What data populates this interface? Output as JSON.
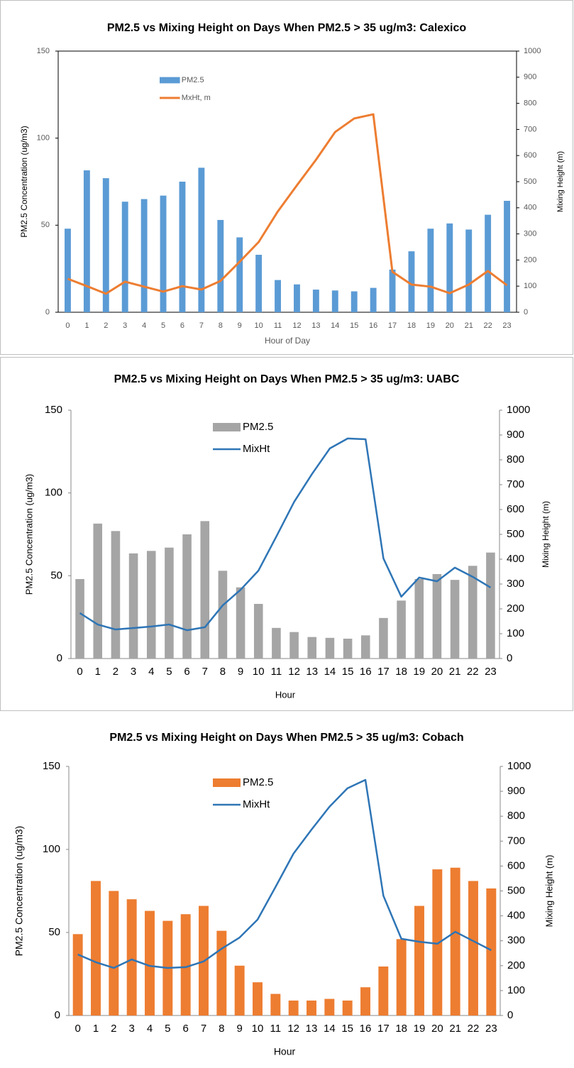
{
  "chart_data": [
    {
      "type": "combo",
      "title": "PM2.5 vs Mixing Height on Days When PM2.5 > 35 ug/m3: Calexico",
      "xlabel": "Hour of Day",
      "ylabel": "PM2.5 Concentration (ug/m3)",
      "y2label": "Mixing Height (m)",
      "categories": [
        "0",
        "1",
        "2",
        "3",
        "4",
        "5",
        "6",
        "7",
        "8",
        "9",
        "10",
        "11",
        "12",
        "13",
        "14",
        "15",
        "16",
        "17",
        "18",
        "19",
        "20",
        "21",
        "22",
        "23"
      ],
      "ylim": [
        0,
        150
      ],
      "yticks": [
        0,
        50,
        100,
        150
      ],
      "y2lim": [
        0,
        1000
      ],
      "y2ticks": [
        0,
        100,
        200,
        300,
        400,
        500,
        600,
        700,
        800,
        900,
        1000
      ],
      "series": [
        {
          "name": "PM2.5",
          "kind": "bar",
          "color": "#5b9bd5",
          "values": [
            48,
            81.5,
            77,
            63.5,
            65,
            67,
            75,
            83,
            53,
            43,
            33,
            18.5,
            16,
            13,
            12.5,
            12,
            14,
            24.5,
            35,
            48,
            51,
            47.5,
            56,
            64
          ]
        },
        {
          "name": "MxHt, m",
          "kind": "line",
          "axis": "y2",
          "color": "#ed7d31",
          "values": [
            128,
            100,
            71,
            117,
            98,
            79,
            100,
            87,
            120,
            193,
            269,
            386,
            486,
            584,
            690,
            742,
            758,
            155,
            106,
            98,
            73,
            106,
            158,
            103
          ]
        }
      ]
    },
    {
      "type": "combo",
      "title": "PM2.5 vs Mixing Height on Days When PM2.5 > 35 ug/m3: UABC",
      "xlabel": "Hour",
      "ylabel": "PM2.5 Concentration (ug/m3)",
      "y2label": "Mixing Height (m)",
      "categories": [
        "0",
        "1",
        "2",
        "3",
        "4",
        "5",
        "6",
        "7",
        "8",
        "9",
        "10",
        "11",
        "12",
        "13",
        "14",
        "15",
        "16",
        "17",
        "18",
        "19",
        "20",
        "21",
        "22",
        "23"
      ],
      "ylim": [
        0,
        150
      ],
      "yticks": [
        0,
        50,
        100,
        150
      ],
      "y2lim": [
        0,
        1000
      ],
      "y2ticks": [
        0,
        100,
        200,
        300,
        400,
        500,
        600,
        700,
        800,
        900,
        1000
      ],
      "series": [
        {
          "name": "PM2.5",
          "kind": "bar",
          "color": "#a5a5a5",
          "values": [
            48,
            81.5,
            77,
            63.5,
            65,
            67,
            75,
            83,
            53,
            43,
            33,
            18.5,
            16,
            13,
            12.5,
            12,
            14,
            24.5,
            35,
            48,
            51,
            47.5,
            56,
            64
          ]
        },
        {
          "name": "MixHt",
          "kind": "line",
          "axis": "y2",
          "color": "#2e75b6",
          "values": [
            183,
            137,
            117,
            123,
            129,
            137,
            114,
            126,
            214,
            277,
            354,
            491,
            631,
            743,
            846,
            886,
            883,
            403,
            249,
            326,
            311,
            366,
            329,
            286
          ]
        }
      ]
    },
    {
      "type": "combo",
      "title": "PM2.5 vs Mixing Height on Days When PM2.5 > 35 ug/m3: Cobach",
      "xlabel": "Hour",
      "ylabel": "PM2.5 Concentration (ug/m3)",
      "y2label": "Mixing Height (m)",
      "categories": [
        "0",
        "1",
        "2",
        "3",
        "4",
        "5",
        "6",
        "7",
        "8",
        "9",
        "10",
        "11",
        "12",
        "13",
        "14",
        "15",
        "16",
        "17",
        "18",
        "19",
        "20",
        "21",
        "22",
        "23"
      ],
      "ylim": [
        0,
        150
      ],
      "yticks": [
        0,
        50,
        100,
        150
      ],
      "y2lim": [
        0,
        1000
      ],
      "y2ticks": [
        0,
        100,
        200,
        300,
        400,
        500,
        600,
        700,
        800,
        900,
        1000
      ],
      "series": [
        {
          "name": "PM2.5",
          "kind": "bar",
          "color": "#ed7d31",
          "values": [
            49,
            81,
            75,
            70,
            63,
            57,
            61,
            66,
            51,
            30,
            20,
            13,
            9,
            9,
            10,
            9,
            17,
            29.5,
            46,
            66,
            88,
            89,
            81,
            76.5
          ]
        },
        {
          "name": "MixHt",
          "kind": "line",
          "axis": "y2",
          "color": "#2e75b6",
          "values": [
            245,
            214,
            191,
            225,
            199,
            191,
            194,
            217,
            268,
            313,
            385,
            516,
            650,
            746,
            838,
            912,
            946,
            481,
            308,
            296,
            288,
            336,
            299,
            262
          ]
        }
      ]
    }
  ]
}
